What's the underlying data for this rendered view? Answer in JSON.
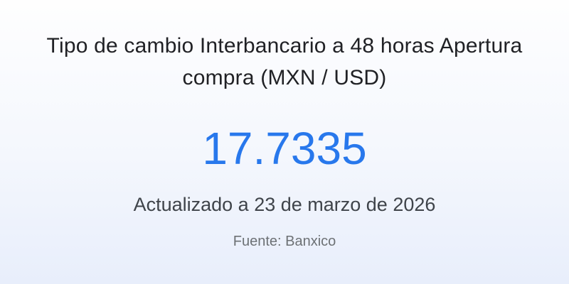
{
  "widget": {
    "title": "Tipo de cambio Interbancario a 48 horas Apertura compra (MXN / USD)",
    "value": "17.7335",
    "updated_text": "Actualizado a 23 de marzo de 2026",
    "source_text": "Fuente: Banxico",
    "colors": {
      "value_accent": "#2878ec",
      "title_text": "#202125",
      "updated_text": "#3f444a",
      "source_text": "#6d7175",
      "background_top": "#fefefe",
      "background_bottom": "#e8eefb"
    }
  }
}
